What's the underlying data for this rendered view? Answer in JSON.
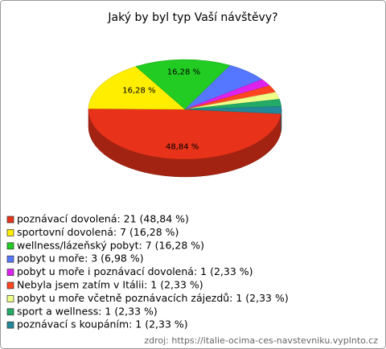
{
  "chart_data": {
    "type": "pie",
    "title": "Jaký by byl typ Vaší návštěvy?",
    "categories": [
      "poznávací dovolená: 21 (48,84 %)",
      "sportovní dovolená: 7 (16,28 %)",
      "wellness/lázeňský pobyt: 7 (16,28 %)",
      "pobyt u moře: 3 (6,98 %)",
      "pobyt u moře i poznávací dovolená: 1 (2,33 %)",
      "Nebyla jsem zatím v Itálii: 1 (2,33 %)",
      "pobyt u moře včetně poznávacích zájezdů: 1 (2,33 %)",
      "sport a wellness: 1 (2,33 %)",
      "poznávací s koupáním: 1 (2,33 %)"
    ],
    "values": [
      48.84,
      16.28,
      16.28,
      6.98,
      2.33,
      2.33,
      2.33,
      2.33,
      2.33
    ],
    "value_labels": [
      "48,84 %",
      "16,28 %",
      "16,28 %",
      null,
      null,
      null,
      null,
      null,
      null
    ],
    "colors": [
      "#e8321a",
      "#ffee00",
      "#22cc22",
      "#5577ff",
      "#dd22ee",
      "#ff4422",
      "#eeff88",
      "#22aa66",
      "#228899"
    ],
    "source": "zdroj: https://italie-ocima-ces-navstevniku.vyplnto.cz"
  }
}
